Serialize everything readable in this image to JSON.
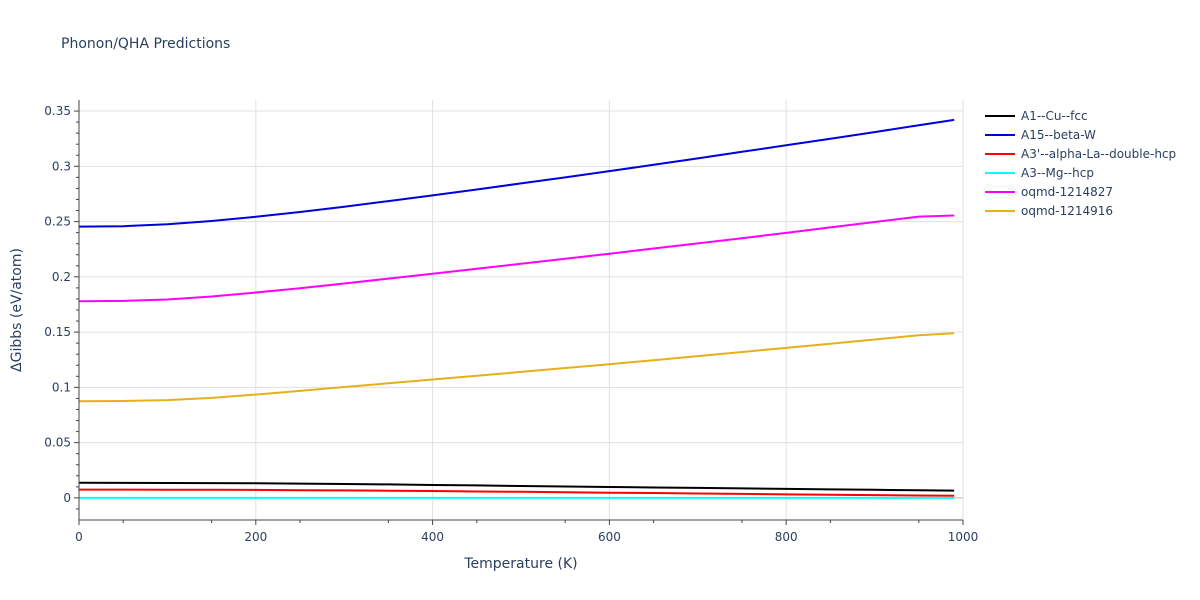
{
  "chart_data": {
    "type": "line",
    "title": "Phonon/QHA Predictions",
    "xlabel": "Temperature (K)",
    "ylabel": "ΔGibbs (eV/atom)",
    "xlim": [
      0,
      1000
    ],
    "ylim": [
      -0.02,
      0.36
    ],
    "x_ticks": [
      0,
      200,
      400,
      600,
      800,
      1000
    ],
    "x_tick_labels": [
      "0",
      "200",
      "400",
      "600",
      "800",
      "1000"
    ],
    "y_ticks": [
      0,
      0.05,
      0.1,
      0.15,
      0.2,
      0.25,
      0.3,
      0.35
    ],
    "y_tick_labels": [
      "0",
      "0.05",
      "0.1",
      "0.15",
      "0.2",
      "0.25",
      "0.3",
      "0.35"
    ],
    "grid": true,
    "legend_position": "right",
    "x": [
      0,
      50,
      100,
      150,
      200,
      250,
      300,
      350,
      400,
      450,
      500,
      550,
      600,
      650,
      700,
      750,
      800,
      850,
      900,
      950,
      990
    ],
    "series": [
      {
        "name": "A1--Cu--fcc",
        "color": "#000000",
        "values": [
          0.0137,
          0.0136,
          0.0135,
          0.0134,
          0.0132,
          0.0129,
          0.0126,
          0.0122,
          0.0117,
          0.0113,
          0.0108,
          0.0103,
          0.0099,
          0.0094,
          0.009,
          0.0086,
          0.0081,
          0.0077,
          0.0073,
          0.0069,
          0.0066
        ]
      },
      {
        "name": "A15--beta-W",
        "color": "#0000dd",
        "values": [
          0.2455,
          0.2458,
          0.2475,
          0.2505,
          0.2543,
          0.2587,
          0.2635,
          0.2685,
          0.2737,
          0.279,
          0.2845,
          0.29,
          0.2957,
          0.3014,
          0.3072,
          0.3131,
          0.319,
          0.325,
          0.331,
          0.3372,
          0.342
        ]
      },
      {
        "name": "A3'--alpha-La--double-hcp",
        "color": "#ff0000",
        "values": [
          0.0075,
          0.0075,
          0.0074,
          0.0073,
          0.0072,
          0.007,
          0.0068,
          0.0065,
          0.0062,
          0.0058,
          0.0055,
          0.0051,
          0.0047,
          0.0044,
          0.004,
          0.0036,
          0.0032,
          0.0029,
          0.0025,
          0.0022,
          0.0019
        ]
      },
      {
        "name": "A3--Mg--hcp",
        "color": "#00ffff",
        "values": [
          0,
          0,
          0,
          0,
          0,
          0,
          0,
          0,
          0,
          0,
          0,
          0,
          0,
          0,
          0,
          0,
          0,
          0,
          0,
          0,
          0
        ]
      },
      {
        "name": "oqmd-1214827",
        "color": "#ff00ff",
        "values": [
          0.178,
          0.1782,
          0.1795,
          0.1822,
          0.1858,
          0.1897,
          0.194,
          0.1984,
          0.2028,
          0.2073,
          0.2118,
          0.2163,
          0.2209,
          0.2256,
          0.2303,
          0.235,
          0.2398,
          0.2447,
          0.2496,
          0.2545,
          0.2555
        ]
      },
      {
        "name": "oqmd-1214916",
        "color": "#e6b01a",
        "values": [
          0.0875,
          0.0877,
          0.0885,
          0.0905,
          0.0935,
          0.0968,
          0.1003,
          0.1037,
          0.1071,
          0.1105,
          0.114,
          0.1175,
          0.121,
          0.1246,
          0.1283,
          0.132,
          0.1357,
          0.1395,
          0.1433,
          0.1472,
          0.149
        ]
      }
    ]
  }
}
